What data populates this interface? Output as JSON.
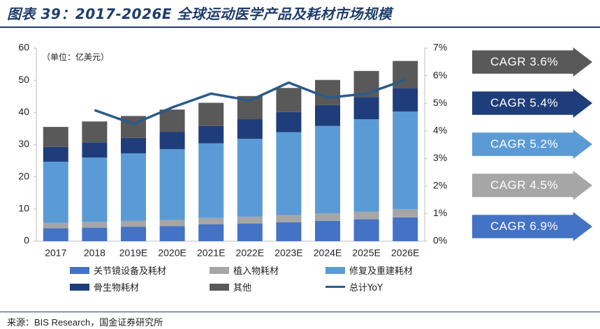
{
  "title": "图表 39：2017-2026E 全球运动医学产品及耗材市场规模",
  "source": "来源：BIS Research，国金证券研究所",
  "chart_data": {
    "type": "bar",
    "stacked": true,
    "unit_note": "（单位：亿美元）",
    "categories": [
      "2017",
      "2018",
      "2019E",
      "2020E",
      "2021E",
      "2022E",
      "2023E",
      "2024E",
      "2025E",
      "2026E"
    ],
    "series": [
      {
        "name": "关节镜设备及耗材",
        "color": "#4472c4",
        "values": [
          4.0,
          4.2,
          4.5,
          4.7,
          5.2,
          5.5,
          5.9,
          6.3,
          6.8,
          7.4
        ]
      },
      {
        "name": "植入物耗材",
        "color": "#a6a6a6",
        "values": [
          1.7,
          1.8,
          1.8,
          1.9,
          2.0,
          2.1,
          2.2,
          2.3,
          2.4,
          2.5
        ]
      },
      {
        "name": "修复及重建耗材",
        "color": "#5b9bd5",
        "values": [
          19.0,
          20.0,
          21.0,
          22.0,
          23.2,
          24.2,
          25.8,
          27.2,
          28.7,
          30.4
        ]
      },
      {
        "name": "骨生物耗材",
        "color": "#1f3d7a",
        "values": [
          4.6,
          4.7,
          4.8,
          5.3,
          5.4,
          6.1,
          6.2,
          6.5,
          6.9,
          7.3
        ]
      },
      {
        "name": "其他",
        "color": "#595959",
        "values": [
          6.2,
          6.5,
          6.8,
          7.0,
          7.2,
          7.2,
          7.5,
          7.8,
          8.1,
          8.4
        ]
      }
    ],
    "line_series": {
      "name": "总计YoY",
      "color": "#2b5a8c",
      "axis": "right",
      "values": [
        null,
        4.75,
        4.25,
        4.85,
        5.35,
        5.1,
        5.75,
        5.2,
        5.35,
        5.85
      ]
    },
    "ylim_left": [
      0,
      60
    ],
    "yticks_left": [
      "0",
      "10",
      "20",
      "30",
      "40",
      "50",
      "60"
    ],
    "ylim_right": [
      0,
      7
    ],
    "yticks_right": [
      "0%",
      "1%",
      "2%",
      "3%",
      "4%",
      "5%",
      "6%",
      "7%"
    ],
    "grid": false,
    "legend_position": "bottom"
  },
  "cagr": [
    {
      "label": "CAGR  3.6%",
      "color": "#595959"
    },
    {
      "label": "CAGR  5.4%",
      "color": "#1f3d7a"
    },
    {
      "label": "CAGR  5.2%",
      "color": "#5b9bd5"
    },
    {
      "label": "CAGR  4.5%",
      "color": "#a6a6a6"
    },
    {
      "label": "CAGR  6.9%",
      "color": "#4472c4"
    }
  ]
}
